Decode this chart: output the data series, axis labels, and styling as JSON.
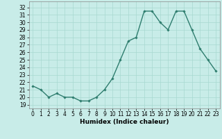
{
  "x": [
    0,
    1,
    2,
    3,
    4,
    5,
    6,
    7,
    8,
    9,
    10,
    11,
    12,
    13,
    14,
    15,
    16,
    17,
    18,
    19,
    20,
    21,
    22,
    23
  ],
  "y": [
    21.5,
    21.0,
    20.0,
    20.5,
    20.0,
    20.0,
    19.5,
    19.5,
    20.0,
    21.0,
    22.5,
    25.0,
    27.5,
    28.0,
    31.5,
    31.5,
    30.0,
    29.0,
    31.5,
    31.5,
    29.0,
    26.5,
    25.0,
    23.5
  ],
  "line_color": "#2e7d6e",
  "marker": "D",
  "marker_size": 1.8,
  "line_width": 1.0,
  "bg_color": "#c8ece8",
  "grid_color": "#a8d8d0",
  "xlabel": "Humidex (Indice chaleur)",
  "ylabel_ticks": [
    19,
    20,
    21,
    22,
    23,
    24,
    25,
    26,
    27,
    28,
    29,
    30,
    31,
    32
  ],
  "ylim": [
    18.5,
    32.8
  ],
  "xlim": [
    -0.5,
    23.5
  ],
  "tick_fontsize": 5.5,
  "xlabel_fontsize": 6.5
}
